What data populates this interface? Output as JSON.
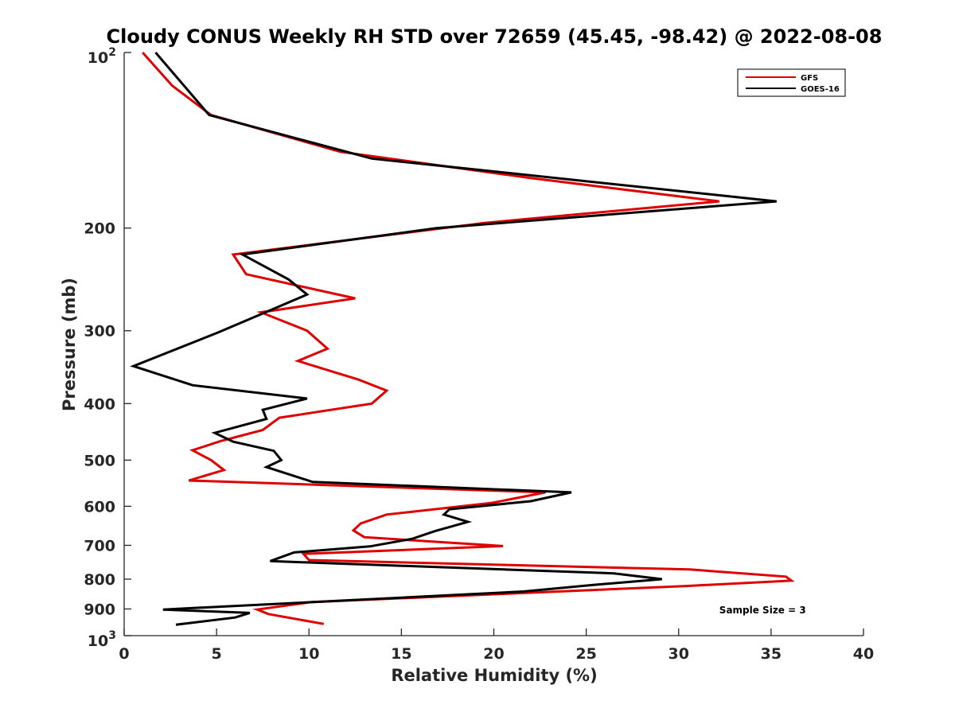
{
  "chart_data": {
    "type": "line",
    "title": "Cloudy CONUS Weekly RH STD over 72659 (45.45, -98.42) @ 2022-08-08",
    "xlabel": "Relative Humidity (%)",
    "ylabel": "Pressure (mb)",
    "xlim": [
      0,
      40
    ],
    "ylim": [
      100,
      1000
    ],
    "y_scale": "log",
    "y_reversed": true,
    "x_ticks": [
      0,
      5,
      10,
      15,
      20,
      25,
      30,
      35,
      40
    ],
    "x_tick_labels": [
      "0",
      "5",
      "10",
      "15",
      "20",
      "25",
      "30",
      "35",
      "40"
    ],
    "y_ticks": [
      100,
      200,
      300,
      400,
      500,
      600,
      700,
      800,
      900,
      1000
    ],
    "y_tick_labels": [
      {
        "base": "10",
        "sup": "2"
      },
      {
        "base": "200",
        "sup": ""
      },
      {
        "base": "300",
        "sup": ""
      },
      {
        "base": "400",
        "sup": ""
      },
      {
        "base": "500",
        "sup": ""
      },
      {
        "base": "600",
        "sup": ""
      },
      {
        "base": "700",
        "sup": ""
      },
      {
        "base": "800",
        "sup": ""
      },
      {
        "base": "900",
        "sup": ""
      },
      {
        "base": "10",
        "sup": "3"
      }
    ],
    "grid": false,
    "legend_position": "top-right",
    "series": [
      {
        "name": "GFS",
        "color": "#e00000",
        "points": [
          [
            1.0,
            100
          ],
          [
            2.6,
            114
          ],
          [
            4.7,
            128
          ],
          [
            11.7,
            148
          ],
          [
            21.9,
            164
          ],
          [
            32.2,
            180
          ],
          [
            19.5,
            196
          ],
          [
            5.9,
            222
          ],
          [
            6.6,
            240
          ],
          [
            12.5,
            264
          ],
          [
            7.4,
            279
          ],
          [
            9.9,
            300
          ],
          [
            11.0,
            322
          ],
          [
            9.4,
            338
          ],
          [
            12.7,
            364
          ],
          [
            14.2,
            380
          ],
          [
            13.4,
            400
          ],
          [
            8.4,
            423
          ],
          [
            7.5,
            444
          ],
          [
            5.2,
            464
          ],
          [
            3.7,
            481
          ],
          [
            4.7,
            500
          ],
          [
            5.4,
            520
          ],
          [
            3.5,
            542
          ],
          [
            22.8,
            568
          ],
          [
            19.9,
            592
          ],
          [
            14.2,
            620
          ],
          [
            12.8,
            642
          ],
          [
            12.4,
            660
          ],
          [
            13.0,
            678
          ],
          [
            20.5,
            702
          ],
          [
            9.7,
            724
          ],
          [
            10.0,
            742
          ],
          [
            30.6,
            770
          ],
          [
            35.8,
            792
          ],
          [
            36.1,
            805
          ],
          [
            30.4,
            822
          ],
          [
            20.5,
            848
          ],
          [
            10.1,
            876
          ],
          [
            7.2,
            902
          ],
          [
            7.8,
            918
          ],
          [
            10.8,
            955
          ]
        ]
      },
      {
        "name": "GOES-16",
        "color": "#000000",
        "points": [
          [
            1.7,
            100
          ],
          [
            4.6,
            128
          ],
          [
            13.4,
            152
          ],
          [
            35.3,
            180
          ],
          [
            16.9,
            200
          ],
          [
            6.4,
            222
          ],
          [
            8.9,
            245
          ],
          [
            9.9,
            260
          ],
          [
            7.3,
            282
          ],
          [
            5.1,
            302
          ],
          [
            0.5,
            345
          ],
          [
            3.7,
            372
          ],
          [
            9.9,
            392
          ],
          [
            7.5,
            410
          ],
          [
            7.7,
            425
          ],
          [
            4.9,
            449
          ],
          [
            5.9,
            465
          ],
          [
            8.1,
            482
          ],
          [
            8.5,
            500
          ],
          [
            7.7,
            514
          ],
          [
            10.2,
            545
          ],
          [
            24.2,
            568
          ],
          [
            22.0,
            588
          ],
          [
            17.6,
            607
          ],
          [
            17.3,
            620
          ],
          [
            18.6,
            638
          ],
          [
            16.8,
            662
          ],
          [
            15.6,
            682
          ],
          [
            13.3,
            703
          ],
          [
            9.2,
            720
          ],
          [
            7.9,
            745
          ],
          [
            26.5,
            782
          ],
          [
            29.1,
            800
          ],
          [
            25.5,
            818
          ],
          [
            21.6,
            840
          ],
          [
            2.1,
            902
          ],
          [
            6.8,
            914
          ],
          [
            6.0,
            931
          ],
          [
            2.8,
            958
          ]
        ]
      }
    ],
    "annotations": [
      {
        "text": "Sample Size = 3",
        "x": 32.2,
        "y": 902
      }
    ]
  }
}
